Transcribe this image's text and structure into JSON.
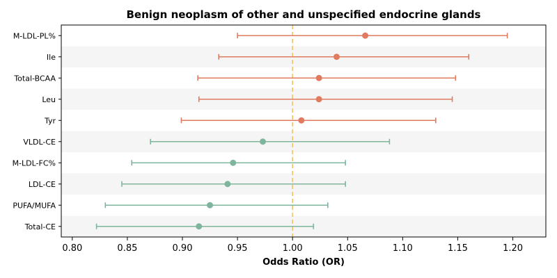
{
  "chart_data": {
    "type": "forest",
    "title": "Benign neoplasm of other and unspecified endocrine glands",
    "xlabel": "Odds Ratio (OR)",
    "ylabel": "",
    "xlim": [
      0.79,
      1.23
    ],
    "xticks": [
      0.8,
      0.85,
      0.9,
      0.95,
      1.0,
      1.05,
      1.1,
      1.15,
      1.2
    ],
    "xtick_labels": [
      "0.80",
      "0.85",
      "0.90",
      "0.95",
      "1.00",
      "1.05",
      "1.10",
      "1.15",
      "1.20"
    ],
    "reference_line": 1.0,
    "colors": {
      "positive": "#e07b5f",
      "negative": "#7fb59c",
      "reference": "#f0c36b",
      "band": "#f5f5f5"
    },
    "rows": [
      {
        "label": "M-LDL-PL%",
        "or": 1.066,
        "lower": 0.95,
        "upper": 1.195,
        "direction": "positive"
      },
      {
        "label": "Ile",
        "or": 1.04,
        "lower": 0.933,
        "upper": 1.16,
        "direction": "positive"
      },
      {
        "label": "Total-BCAA",
        "or": 1.024,
        "lower": 0.914,
        "upper": 1.148,
        "direction": "positive"
      },
      {
        "label": "Leu",
        "or": 1.024,
        "lower": 0.915,
        "upper": 1.145,
        "direction": "positive"
      },
      {
        "label": "Tyr",
        "or": 1.008,
        "lower": 0.899,
        "upper": 1.13,
        "direction": "positive"
      },
      {
        "label": "VLDL-CE",
        "or": 0.973,
        "lower": 0.871,
        "upper": 1.088,
        "direction": "negative"
      },
      {
        "label": "M-LDL-FC%",
        "or": 0.946,
        "lower": 0.854,
        "upper": 1.048,
        "direction": "negative"
      },
      {
        "label": "LDL-CE",
        "or": 0.941,
        "lower": 0.845,
        "upper": 1.048,
        "direction": "negative"
      },
      {
        "label": "PUFA/MUFA",
        "or": 0.925,
        "lower": 0.83,
        "upper": 1.032,
        "direction": "negative"
      },
      {
        "label": "Total-CE",
        "or": 0.915,
        "lower": 0.822,
        "upper": 1.019,
        "direction": "negative"
      }
    ]
  }
}
